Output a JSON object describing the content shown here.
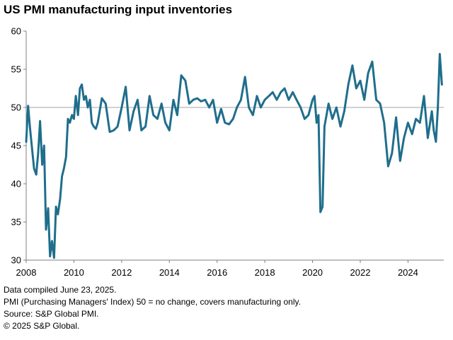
{
  "chart_data": {
    "type": "line",
    "title": "US PMI manufacturing input inventories",
    "xlabel": "",
    "ylabel": "",
    "xlim": [
      2008.0,
      2025.5
    ],
    "ylim": [
      30,
      60
    ],
    "x_ticks": [
      "2008",
      "2010",
      "2012",
      "2014",
      "2016",
      "2018",
      "2020",
      "2022",
      "2024"
    ],
    "y_ticks": [
      "30",
      "35",
      "40",
      "45",
      "50",
      "55",
      "60"
    ],
    "reference_line": 50,
    "grid": false,
    "colors": {
      "line": "#1f6e8c",
      "reference": "#a6a6a6",
      "axis": "#7f7f7f"
    },
    "series": [
      {
        "name": "",
        "x": [
          2008.0,
          2008.08,
          2008.17,
          2008.25,
          2008.33,
          2008.42,
          2008.5,
          2008.58,
          2008.67,
          2008.75,
          2008.83,
          2008.92,
          2009.0,
          2009.08,
          2009.17,
          2009.25,
          2009.33,
          2009.42,
          2009.5,
          2009.58,
          2009.67,
          2009.75,
          2009.83,
          2009.92,
          2010.0,
          2010.08,
          2010.17,
          2010.25,
          2010.33,
          2010.42,
          2010.5,
          2010.58,
          2010.67,
          2010.75,
          2010.83,
          2010.92,
          2011.0,
          2011.17,
          2011.33,
          2011.5,
          2011.67,
          2011.83,
          2012.0,
          2012.17,
          2012.33,
          2012.5,
          2012.67,
          2012.83,
          2013.0,
          2013.17,
          2013.33,
          2013.5,
          2013.67,
          2013.83,
          2014.0,
          2014.17,
          2014.33,
          2014.5,
          2014.67,
          2014.83,
          2015.0,
          2015.17,
          2015.33,
          2015.5,
          2015.67,
          2015.83,
          2016.0,
          2016.17,
          2016.33,
          2016.5,
          2016.67,
          2016.83,
          2017.0,
          2017.17,
          2017.33,
          2017.5,
          2017.67,
          2017.83,
          2018.0,
          2018.17,
          2018.33,
          2018.5,
          2018.67,
          2018.83,
          2019.0,
          2019.17,
          2019.33,
          2019.5,
          2019.67,
          2019.83,
          2020.0,
          2020.08,
          2020.17,
          2020.25,
          2020.33,
          2020.42,
          2020.5,
          2020.67,
          2020.83,
          2021.0,
          2021.17,
          2021.33,
          2021.5,
          2021.67,
          2021.83,
          2022.0,
          2022.17,
          2022.33,
          2022.5,
          2022.67,
          2022.83,
          2023.0,
          2023.17,
          2023.33,
          2023.5,
          2023.67,
          2023.83,
          2024.0,
          2024.17,
          2024.33,
          2024.5,
          2024.67,
          2024.83,
          2025.0,
          2025.08,
          2025.17,
          2025.25,
          2025.33,
          2025.42
        ],
        "y": [
          45.5,
          50.2,
          47.0,
          44.5,
          42.0,
          41.2,
          44.0,
          48.2,
          42.5,
          45.0,
          34.0,
          36.8,
          30.5,
          32.5,
          30.3,
          37.0,
          36.0,
          38.0,
          41.0,
          42.0,
          43.5,
          48.5,
          48.0,
          49.0,
          48.5,
          51.5,
          49.0,
          52.5,
          53.0,
          51.0,
          51.5,
          50.0,
          51.0,
          48.0,
          47.5,
          47.2,
          48.0,
          51.2,
          50.5,
          46.8,
          47.0,
          47.5,
          50.0,
          52.7,
          47.0,
          49.5,
          51.0,
          47.0,
          47.5,
          51.5,
          49.0,
          48.5,
          50.5,
          48.0,
          47.0,
          51.0,
          49.0,
          54.2,
          53.5,
          50.5,
          51.0,
          51.2,
          50.8,
          51.0,
          50.0,
          51.0,
          48.0,
          49.8,
          48.0,
          47.8,
          48.5,
          50.0,
          51.0,
          54.0,
          50.0,
          49.0,
          51.5,
          50.0,
          51.0,
          51.5,
          52.0,
          51.0,
          52.0,
          52.5,
          51.0,
          52.0,
          51.0,
          50.0,
          48.5,
          49.0,
          51.0,
          51.5,
          48.0,
          49.0,
          36.3,
          37.0,
          47.5,
          50.5,
          48.5,
          50.0,
          47.5,
          49.5,
          53.0,
          55.5,
          52.5,
          53.5,
          51.0,
          54.5,
          56.0,
          51.0,
          50.5,
          48.0,
          42.3,
          44.0,
          48.7,
          43.0,
          46.0,
          48.0,
          46.5,
          48.5,
          48.0,
          51.5,
          46.0,
          49.5,
          47.0,
          45.5,
          50.0,
          57.0,
          53.0
        ]
      }
    ],
    "notes": [
      "Data compiled June 23, 2025.",
      "PMI (Purchasing Managers' Index) 50 =  no change, covers manufacturing only.",
      "Source: S&P Global PMI.",
      "© 2025 S&P Global."
    ]
  }
}
